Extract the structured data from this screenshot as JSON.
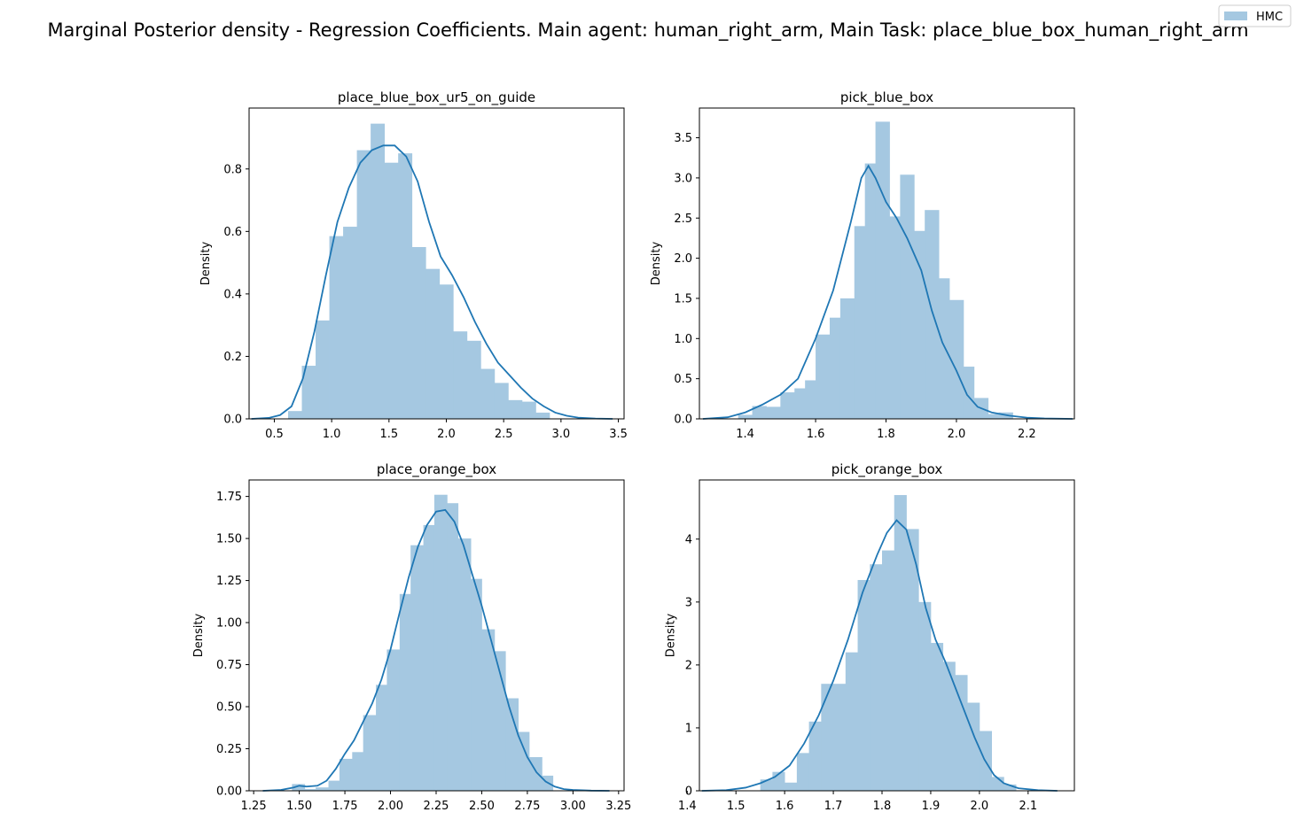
{
  "figure": {
    "title": "Marginal Posterior density - Regression Coefficients. Main agent: human_right_arm, Main Task: place_blue_box_human_right_arm",
    "legend": {
      "label": "HMC",
      "placement": "top-right"
    },
    "bar_color": "#a5c8e1",
    "line_color": "#1f77b4"
  },
  "chart_data": [
    {
      "type": "bar",
      "title": "place_blue_box_ur5_on_guide",
      "xlabel": "",
      "ylabel": "Density",
      "xlim": [
        0.28,
        3.55
      ],
      "ylim": [
        0,
        0.995
      ],
      "xticks": [
        "0.5",
        "1.0",
        "1.5",
        "2.0",
        "2.5",
        "3.0",
        "3.5"
      ],
      "yticks": [
        "0.0",
        "0.2",
        "0.4",
        "0.6",
        "0.8"
      ],
      "bin_edges": [
        0.62,
        0.74,
        0.86,
        0.98,
        1.1,
        1.22,
        1.34,
        1.46,
        1.58,
        1.7,
        1.82,
        1.94,
        2.06,
        2.18,
        2.3,
        2.42,
        2.54,
        2.66,
        2.78,
        2.9
      ],
      "values": [
        0.025,
        0.17,
        0.315,
        0.585,
        0.615,
        0.86,
        0.945,
        0.82,
        0.85,
        0.55,
        0.48,
        0.43,
        0.28,
        0.25,
        0.16,
        0.115,
        0.06,
        0.055,
        0.02
      ],
      "kde_x": [
        0.3,
        0.45,
        0.55,
        0.65,
        0.75,
        0.85,
        0.95,
        1.05,
        1.15,
        1.25,
        1.35,
        1.45,
        1.55,
        1.65,
        1.75,
        1.85,
        1.95,
        2.05,
        2.15,
        2.25,
        2.35,
        2.45,
        2.55,
        2.65,
        2.75,
        2.85,
        2.95,
        3.05,
        3.15,
        3.3,
        3.45
      ],
      "kde_y": [
        0.0,
        0.003,
        0.012,
        0.04,
        0.13,
        0.28,
        0.46,
        0.63,
        0.74,
        0.82,
        0.86,
        0.875,
        0.875,
        0.84,
        0.76,
        0.63,
        0.52,
        0.46,
        0.39,
        0.31,
        0.24,
        0.18,
        0.14,
        0.1,
        0.065,
        0.04,
        0.02,
        0.01,
        0.004,
        0.001,
        0.0
      ]
    },
    {
      "type": "bar",
      "title": "pick_blue_box",
      "xlabel": "",
      "ylabel": "Density",
      "xlim": [
        1.27,
        2.335
      ],
      "ylim": [
        0,
        3.87
      ],
      "xticks": [
        "1.4",
        "1.6",
        "1.8",
        "2.0",
        "2.2"
      ],
      "yticks": [
        "0.0",
        "0.5",
        "1.0",
        "1.5",
        "2.0",
        "2.5",
        "3.0",
        "3.5"
      ],
      "bin_edges": [
        1.38,
        1.42,
        1.46,
        1.5,
        1.54,
        1.57,
        1.6,
        1.64,
        1.67,
        1.71,
        1.74,
        1.77,
        1.81,
        1.84,
        1.88,
        1.91,
        1.95,
        1.98,
        2.02,
        2.05,
        2.09,
        2.12,
        2.16
      ],
      "values": [
        0.05,
        0.16,
        0.15,
        0.33,
        0.38,
        0.48,
        1.05,
        1.26,
        1.5,
        2.4,
        3.18,
        3.7,
        2.52,
        3.04,
        2.34,
        2.6,
        1.75,
        1.48,
        0.65,
        0.26,
        0.06,
        0.08,
        0.03
      ],
      "kde_x": [
        1.28,
        1.35,
        1.4,
        1.45,
        1.5,
        1.55,
        1.6,
        1.65,
        1.7,
        1.73,
        1.75,
        1.77,
        1.8,
        1.83,
        1.86,
        1.9,
        1.93,
        1.96,
        2.0,
        2.03,
        2.06,
        2.1,
        2.15,
        2.2,
        2.25,
        2.33
      ],
      "kde_y": [
        0.0,
        0.02,
        0.08,
        0.18,
        0.3,
        0.5,
        1.0,
        1.6,
        2.45,
        3.0,
        3.15,
        3.0,
        2.7,
        2.5,
        2.25,
        1.85,
        1.35,
        0.95,
        0.6,
        0.3,
        0.15,
        0.08,
        0.04,
        0.015,
        0.005,
        0.0
      ]
    },
    {
      "type": "bar",
      "title": "place_orange_box",
      "xlabel": "",
      "ylabel": "Density",
      "xlim": [
        1.225,
        3.28
      ],
      "ylim": [
        0,
        1.848
      ],
      "xticks": [
        "1.25",
        "1.50",
        "1.75",
        "2.00",
        "2.25",
        "2.50",
        "2.75",
        "3.00",
        "3.25"
      ],
      "yticks": [
        "0.00",
        "0.25",
        "0.50",
        "0.75",
        "1.00",
        "1.25",
        "1.50",
        "1.75"
      ],
      "bin_edges": [
        1.46,
        1.53,
        1.59,
        1.66,
        1.72,
        1.79,
        1.85,
        1.92,
        1.98,
        2.05,
        2.11,
        2.18,
        2.24,
        2.31,
        2.37,
        2.44,
        2.5,
        2.57,
        2.63,
        2.7,
        2.76,
        2.83,
        2.89
      ],
      "values": [
        0.04,
        0.01,
        0.02,
        0.06,
        0.19,
        0.23,
        0.45,
        0.63,
        0.84,
        1.17,
        1.46,
        1.58,
        1.76,
        1.71,
        1.5,
        1.26,
        0.96,
        0.83,
        0.55,
        0.35,
        0.2,
        0.09,
        0.04
      ],
      "kde_x": [
        1.3,
        1.4,
        1.47,
        1.5,
        1.54,
        1.6,
        1.65,
        1.7,
        1.75,
        1.8,
        1.85,
        1.9,
        1.95,
        2.0,
        2.05,
        2.1,
        2.15,
        2.2,
        2.25,
        2.3,
        2.35,
        2.4,
        2.45,
        2.5,
        2.55,
        2.6,
        2.65,
        2.7,
        2.75,
        2.8,
        2.85,
        2.9,
        2.95,
        3.0,
        3.1,
        3.2
      ],
      "kde_y": [
        0.0,
        0.005,
        0.02,
        0.03,
        0.025,
        0.03,
        0.06,
        0.13,
        0.22,
        0.3,
        0.41,
        0.52,
        0.66,
        0.84,
        1.06,
        1.27,
        1.45,
        1.58,
        1.66,
        1.67,
        1.6,
        1.46,
        1.28,
        1.1,
        0.9,
        0.7,
        0.5,
        0.33,
        0.2,
        0.11,
        0.055,
        0.025,
        0.01,
        0.005,
        0.001,
        0.0
      ]
    },
    {
      "type": "bar",
      "title": "pick_orange_box",
      "xlabel": "",
      "ylabel": "Density",
      "xlim": [
        1.425,
        2.195
      ],
      "ylim": [
        0,
        4.94
      ],
      "xticks": [
        "1.4",
        "1.5",
        "1.6",
        "1.7",
        "1.8",
        "1.9",
        "2.0",
        "2.1"
      ],
      "yticks": [
        "0",
        "1",
        "2",
        "3",
        "4"
      ],
      "bin_edges": [
        1.55,
        1.575,
        1.6,
        1.625,
        1.65,
        1.675,
        1.7,
        1.725,
        1.75,
        1.775,
        1.8,
        1.825,
        1.85,
        1.875,
        1.9,
        1.925,
        1.95,
        1.975,
        2.0,
        2.025,
        2.05,
        2.075
      ],
      "values": [
        0.18,
        0.3,
        0.13,
        0.6,
        1.1,
        1.7,
        1.7,
        2.2,
        3.35,
        3.6,
        3.82,
        4.7,
        4.16,
        3.0,
        2.35,
        2.05,
        1.84,
        1.4,
        0.95,
        0.22,
        0.1,
        0.03
      ],
      "kde_x": [
        1.43,
        1.48,
        1.52,
        1.55,
        1.58,
        1.61,
        1.64,
        1.67,
        1.7,
        1.73,
        1.76,
        1.79,
        1.81,
        1.83,
        1.85,
        1.87,
        1.89,
        1.91,
        1.93,
        1.95,
        1.97,
        1.99,
        2.01,
        2.03,
        2.05,
        2.08,
        2.12,
        2.16
      ],
      "kde_y": [
        0.0,
        0.01,
        0.05,
        0.12,
        0.22,
        0.4,
        0.75,
        1.2,
        1.75,
        2.4,
        3.15,
        3.75,
        4.1,
        4.3,
        4.15,
        3.6,
        2.9,
        2.4,
        2.05,
        1.65,
        1.25,
        0.85,
        0.5,
        0.25,
        0.12,
        0.04,
        0.01,
        0.0
      ]
    }
  ]
}
